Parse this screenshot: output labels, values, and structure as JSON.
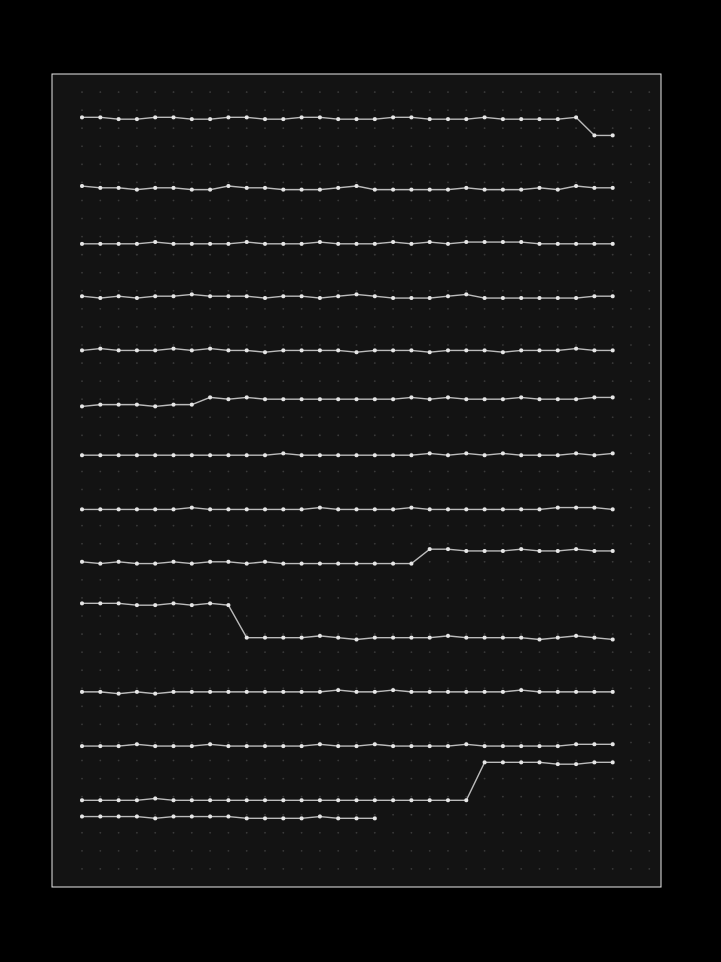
{
  "chart_data": {
    "type": "line",
    "grid": true,
    "xlim": [
      -1.64,
      31.64
    ],
    "ylim": [
      0,
      45
    ],
    "x": [
      0,
      1,
      2,
      3,
      4,
      5,
      6,
      7,
      8,
      9,
      10,
      11,
      12,
      13,
      14,
      15,
      16,
      17,
      18,
      19,
      20,
      21,
      22,
      23,
      24,
      25,
      26,
      27,
      28,
      29
    ],
    "series": [
      {
        "color": "#e6e6e6",
        "values": [
          42.6,
          42.6,
          42.5,
          42.5,
          42.6,
          42.6,
          42.5,
          42.5,
          42.6,
          42.6,
          42.5,
          42.5,
          42.6,
          42.6,
          42.5,
          42.5,
          42.5,
          42.6,
          42.6,
          42.5,
          42.5,
          42.5,
          42.6,
          42.5,
          42.5,
          42.5,
          42.5,
          42.6,
          41.6,
          41.6
        ]
      },
      {
        "color": "#e6e6e6",
        "values": [
          38.8,
          38.7,
          38.7,
          38.6,
          38.7,
          38.7,
          38.6,
          38.6,
          38.8,
          38.7,
          38.7,
          38.6,
          38.6,
          38.6,
          38.7,
          38.8,
          38.6,
          38.6,
          38.6,
          38.6,
          38.6,
          38.7,
          38.6,
          38.6,
          38.6,
          38.7,
          38.6,
          38.8,
          38.7,
          38.7
        ]
      },
      {
        "color": "#e6e6e6",
        "values": [
          35.6,
          35.6,
          35.6,
          35.6,
          35.7,
          35.6,
          35.6,
          35.6,
          35.6,
          35.7,
          35.6,
          35.6,
          35.6,
          35.7,
          35.6,
          35.6,
          35.6,
          35.7,
          35.6,
          35.7,
          35.6,
          35.7,
          35.7,
          35.7,
          35.7,
          35.6,
          35.6,
          35.6,
          35.6,
          35.6
        ]
      },
      {
        "color": "#e6e6e6",
        "values": [
          32.7,
          32.6,
          32.7,
          32.6,
          32.7,
          32.7,
          32.8,
          32.7,
          32.7,
          32.7,
          32.6,
          32.7,
          32.7,
          32.6,
          32.7,
          32.8,
          32.7,
          32.6,
          32.6,
          32.6,
          32.7,
          32.8,
          32.6,
          32.6,
          32.6,
          32.6,
          32.6,
          32.6,
          32.7,
          32.7
        ]
      },
      {
        "color": "#e6e6e6",
        "values": [
          29.7,
          29.8,
          29.7,
          29.7,
          29.7,
          29.8,
          29.7,
          29.8,
          29.7,
          29.7,
          29.6,
          29.7,
          29.7,
          29.7,
          29.7,
          29.6,
          29.7,
          29.7,
          29.7,
          29.6,
          29.7,
          29.7,
          29.7,
          29.6,
          29.7,
          29.7,
          29.7,
          29.8,
          29.7,
          29.7
        ]
      },
      {
        "color": "#e6e6e6",
        "values": [
          26.6,
          26.7,
          26.7,
          26.7,
          26.6,
          26.7,
          26.7,
          27.1,
          27.0,
          27.1,
          27.0,
          27.0,
          27.0,
          27.0,
          27.0,
          27.0,
          27.0,
          27.0,
          27.1,
          27.0,
          27.1,
          27.0,
          27.0,
          27.0,
          27.1,
          27.0,
          27.0,
          27.0,
          27.1,
          27.1
        ]
      },
      {
        "color": "#e6e6e6",
        "values": [
          23.9,
          23.9,
          23.9,
          23.9,
          23.9,
          23.9,
          23.9,
          23.9,
          23.9,
          23.9,
          23.9,
          24.0,
          23.9,
          23.9,
          23.9,
          23.9,
          23.9,
          23.9,
          23.9,
          24.0,
          23.9,
          24.0,
          23.9,
          24.0,
          23.9,
          23.9,
          23.9,
          24.0,
          23.9,
          24.0
        ]
      },
      {
        "color": "#e6e6e6",
        "values": [
          20.9,
          20.9,
          20.9,
          20.9,
          20.9,
          20.9,
          21.0,
          20.9,
          20.9,
          20.9,
          20.9,
          20.9,
          20.9,
          21.0,
          20.9,
          20.9,
          20.9,
          20.9,
          21.0,
          20.9,
          20.9,
          20.9,
          20.9,
          20.9,
          20.9,
          20.9,
          21.0,
          21.0,
          21.0,
          20.9
        ]
      },
      {
        "color": "#e6e6e6",
        "values": [
          18.0,
          17.9,
          18.0,
          17.9,
          17.9,
          18.0,
          17.9,
          18.0,
          18.0,
          17.9,
          18.0,
          17.9,
          17.9,
          17.9,
          17.9,
          17.9,
          17.9,
          17.9,
          17.9,
          18.7,
          18.7,
          18.6,
          18.6,
          18.6,
          18.7,
          18.6,
          18.6,
          18.7,
          18.6,
          18.6
        ]
      },
      {
        "color": "#e6e6e6",
        "values": [
          15.7,
          15.7,
          15.7,
          15.6,
          15.6,
          15.7,
          15.6,
          15.7,
          15.6,
          13.8,
          13.8,
          13.8,
          13.8,
          13.9,
          13.8,
          13.7,
          13.8,
          13.8,
          13.8,
          13.8,
          13.9,
          13.8,
          13.8,
          13.8,
          13.8,
          13.7,
          13.8,
          13.9,
          13.8,
          13.7
        ]
      },
      {
        "color": "#e6e6e6",
        "values": [
          10.8,
          10.8,
          10.7,
          10.8,
          10.7,
          10.8,
          10.8,
          10.8,
          10.8,
          10.8,
          10.8,
          10.8,
          10.8,
          10.8,
          10.9,
          10.8,
          10.8,
          10.9,
          10.8,
          10.8,
          10.8,
          10.8,
          10.8,
          10.8,
          10.9,
          10.8,
          10.8,
          10.8,
          10.8,
          10.8
        ]
      },
      {
        "color": "#e6e6e6",
        "values": [
          7.8,
          7.8,
          7.8,
          7.9,
          7.8,
          7.8,
          7.8,
          7.9,
          7.8,
          7.8,
          7.8,
          7.8,
          7.8,
          7.9,
          7.8,
          7.8,
          7.9,
          7.8,
          7.8,
          7.8,
          7.8,
          7.9,
          7.8,
          7.8,
          7.8,
          7.8,
          7.8,
          7.9,
          7.9,
          7.9
        ]
      },
      {
        "color": "#e6e6e6",
        "values": [
          4.8,
          4.8,
          4.8,
          4.8,
          4.9,
          4.8,
          4.8,
          4.8,
          4.8,
          4.8,
          4.8,
          4.8,
          4.8,
          4.8,
          4.8,
          4.8,
          4.8,
          4.8,
          4.8,
          4.8,
          4.8,
          4.8,
          6.9,
          6.9,
          6.9,
          6.9,
          6.8,
          6.8,
          6.9,
          6.9
        ]
      },
      {
        "color": "#e6e6e6",
        "values": [
          3.9,
          3.9,
          3.9,
          3.9,
          3.8,
          3.9,
          3.9,
          3.9,
          3.9,
          3.8,
          3.8,
          3.8,
          3.8,
          3.9,
          3.8,
          3.8,
          3.8,
          null,
          null,
          null,
          null,
          null,
          null,
          null,
          null,
          null,
          null,
          null,
          null,
          null
        ]
      }
    ]
  }
}
